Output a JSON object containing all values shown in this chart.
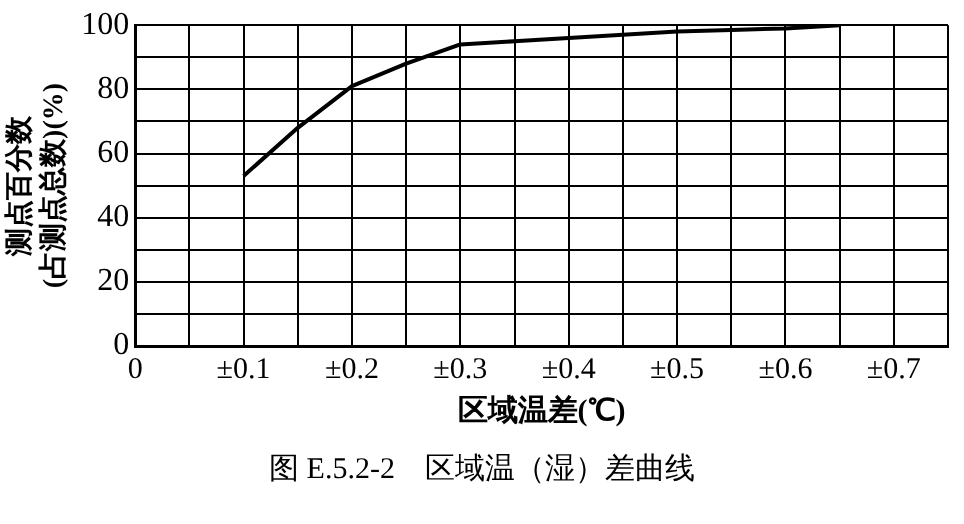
{
  "chart_data": {
    "type": "line",
    "xlabel": "区域温差(℃)",
    "ylabel": "测点百分数\n(占测点总数)(%)",
    "annotations": [
      "图 E.5.2-2　区域温（湿）差曲线"
    ],
    "x": [
      0.1,
      0.15,
      0.2,
      0.25,
      0.3,
      0.35,
      0.4,
      0.45,
      0.5,
      0.55,
      0.6,
      0.65
    ],
    "series": [
      {
        "color": "#000000",
        "values": [
          53,
          68,
          81,
          88,
          94,
          95,
          96,
          97,
          98,
          98.5,
          99,
          100
        ]
      }
    ],
    "xlim": [
      0,
      0.75
    ],
    "xticks": [
      0,
      {
        "value": 0.05,
        "label": null
      },
      {
        "value": 0.1,
        "label": "±0.1"
      },
      {
        "value": 0.15,
        "label": null
      },
      {
        "value": 0.2,
        "label": "±0.2"
      },
      {
        "value": 0.25,
        "label": null
      },
      {
        "value": 0.3,
        "label": "±0.3"
      },
      {
        "value": 0.35,
        "label": null
      },
      {
        "value": 0.4,
        "label": "±0.4"
      },
      {
        "value": 0.45,
        "label": null
      },
      {
        "value": 0.5,
        "label": "±0.5"
      },
      {
        "value": 0.55,
        "label": null
      },
      {
        "value": 0.6,
        "label": "±0.6"
      },
      {
        "value": 0.65,
        "label": null
      },
      {
        "value": 0.7,
        "label": "±0.7"
      },
      {
        "value": 0.75,
        "label": null
      }
    ],
    "ylim": [
      0,
      100
    ],
    "yticks": [
      0,
      {
        "value": 10,
        "label": null
      },
      20,
      {
        "value": 30,
        "label": null
      },
      40,
      {
        "value": 50,
        "label": null
      },
      60,
      {
        "value": 70,
        "label": null
      },
      80,
      {
        "value": 90,
        "label": null
      },
      100
    ],
    "grid": true,
    "legend": false,
    "marker": "none",
    "line_style": "solid"
  }
}
